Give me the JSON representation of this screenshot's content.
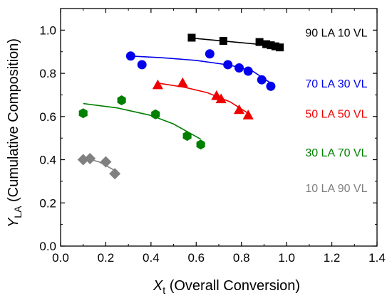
{
  "chart_data": {
    "type": "scatter",
    "xlabel": {
      "symbol": "X",
      "subscript": "t",
      "text": "(Overall Conversion)"
    },
    "ylabel": {
      "symbol": "Y",
      "subscript": "LA",
      "text": "(Cumulative Composition)"
    },
    "xlim": [
      0.0,
      1.4
    ],
    "ylim": [
      0.0,
      1.1
    ],
    "xticks": [
      "0.0",
      "0.2",
      "0.4",
      "0.6",
      "0.8",
      "1.0",
      "1.2",
      "1.4"
    ],
    "yticks": [
      "0.0",
      "0.2",
      "0.4",
      "0.6",
      "0.8",
      "1.0"
    ],
    "xtick_values": [
      0.0,
      0.2,
      0.4,
      0.6,
      0.8,
      1.0,
      1.2,
      1.4
    ],
    "ytick_values": [
      0.0,
      0.2,
      0.4,
      0.6,
      0.8,
      1.0
    ],
    "grid": false,
    "series": [
      {
        "name": "90 LA 10 VL",
        "color": "#000000",
        "marker": "square",
        "points": [
          [
            0.58,
            0.965
          ],
          [
            0.72,
            0.95
          ],
          [
            0.88,
            0.945
          ],
          [
            0.91,
            0.935
          ],
          [
            0.93,
            0.93
          ],
          [
            0.95,
            0.925
          ],
          [
            0.97,
            0.92
          ]
        ],
        "fit": [
          [
            0.58,
            0.963
          ],
          [
            0.97,
            0.925
          ]
        ],
        "label_value": {
          "x": 1.22,
          "y": 0.97
        }
      },
      {
        "name": "70 LA 30 VL",
        "color": "#0000ee",
        "marker": "circle",
        "points": [
          [
            0.31,
            0.88
          ],
          [
            0.36,
            0.84
          ],
          [
            0.66,
            0.89
          ],
          [
            0.74,
            0.84
          ],
          [
            0.79,
            0.825
          ],
          [
            0.83,
            0.81
          ],
          [
            0.89,
            0.77
          ],
          [
            0.93,
            0.74
          ]
        ],
        "fit": [
          [
            0.31,
            0.88
          ],
          [
            0.45,
            0.872
          ],
          [
            0.6,
            0.86
          ],
          [
            0.75,
            0.838
          ],
          [
            0.85,
            0.81
          ],
          [
            0.93,
            0.755
          ]
        ],
        "label_value": {
          "x": 1.22,
          "y": 0.735
        }
      },
      {
        "name": "50 LA 50 VL",
        "color": "#ee0000",
        "marker": "triangle",
        "points": [
          [
            0.43,
            0.745
          ],
          [
            0.54,
            0.755
          ],
          [
            0.69,
            0.695
          ],
          [
            0.71,
            0.68
          ],
          [
            0.79,
            0.63
          ],
          [
            0.83,
            0.605
          ]
        ],
        "fit": [
          [
            0.43,
            0.755
          ],
          [
            0.55,
            0.735
          ],
          [
            0.65,
            0.71
          ],
          [
            0.75,
            0.668
          ],
          [
            0.83,
            0.615
          ]
        ],
        "label_value": {
          "x": 1.22,
          "y": 0.595
        }
      },
      {
        "name": "30 LA 70 VL",
        "color": "#008000",
        "marker": "hexagon",
        "points": [
          [
            0.1,
            0.615
          ],
          [
            0.27,
            0.675
          ],
          [
            0.42,
            0.61
          ],
          [
            0.56,
            0.51
          ],
          [
            0.62,
            0.47
          ]
        ],
        "fit": [
          [
            0.1,
            0.66
          ],
          [
            0.25,
            0.64
          ],
          [
            0.4,
            0.605
          ],
          [
            0.5,
            0.565
          ],
          [
            0.62,
            0.495
          ]
        ],
        "label_value": {
          "x": 1.22,
          "y": 0.415
        }
      },
      {
        "name": "10 LA 90 VL",
        "color": "#808080",
        "marker": "diamond",
        "points": [
          [
            0.1,
            0.4
          ],
          [
            0.13,
            0.405
          ],
          [
            0.2,
            0.39
          ],
          [
            0.24,
            0.335
          ]
        ],
        "fit": [
          [
            0.1,
            0.41
          ],
          [
            0.17,
            0.39
          ],
          [
            0.24,
            0.35
          ]
        ],
        "label_value": {
          "x": 1.22,
          "y": 0.25
        }
      }
    ]
  }
}
